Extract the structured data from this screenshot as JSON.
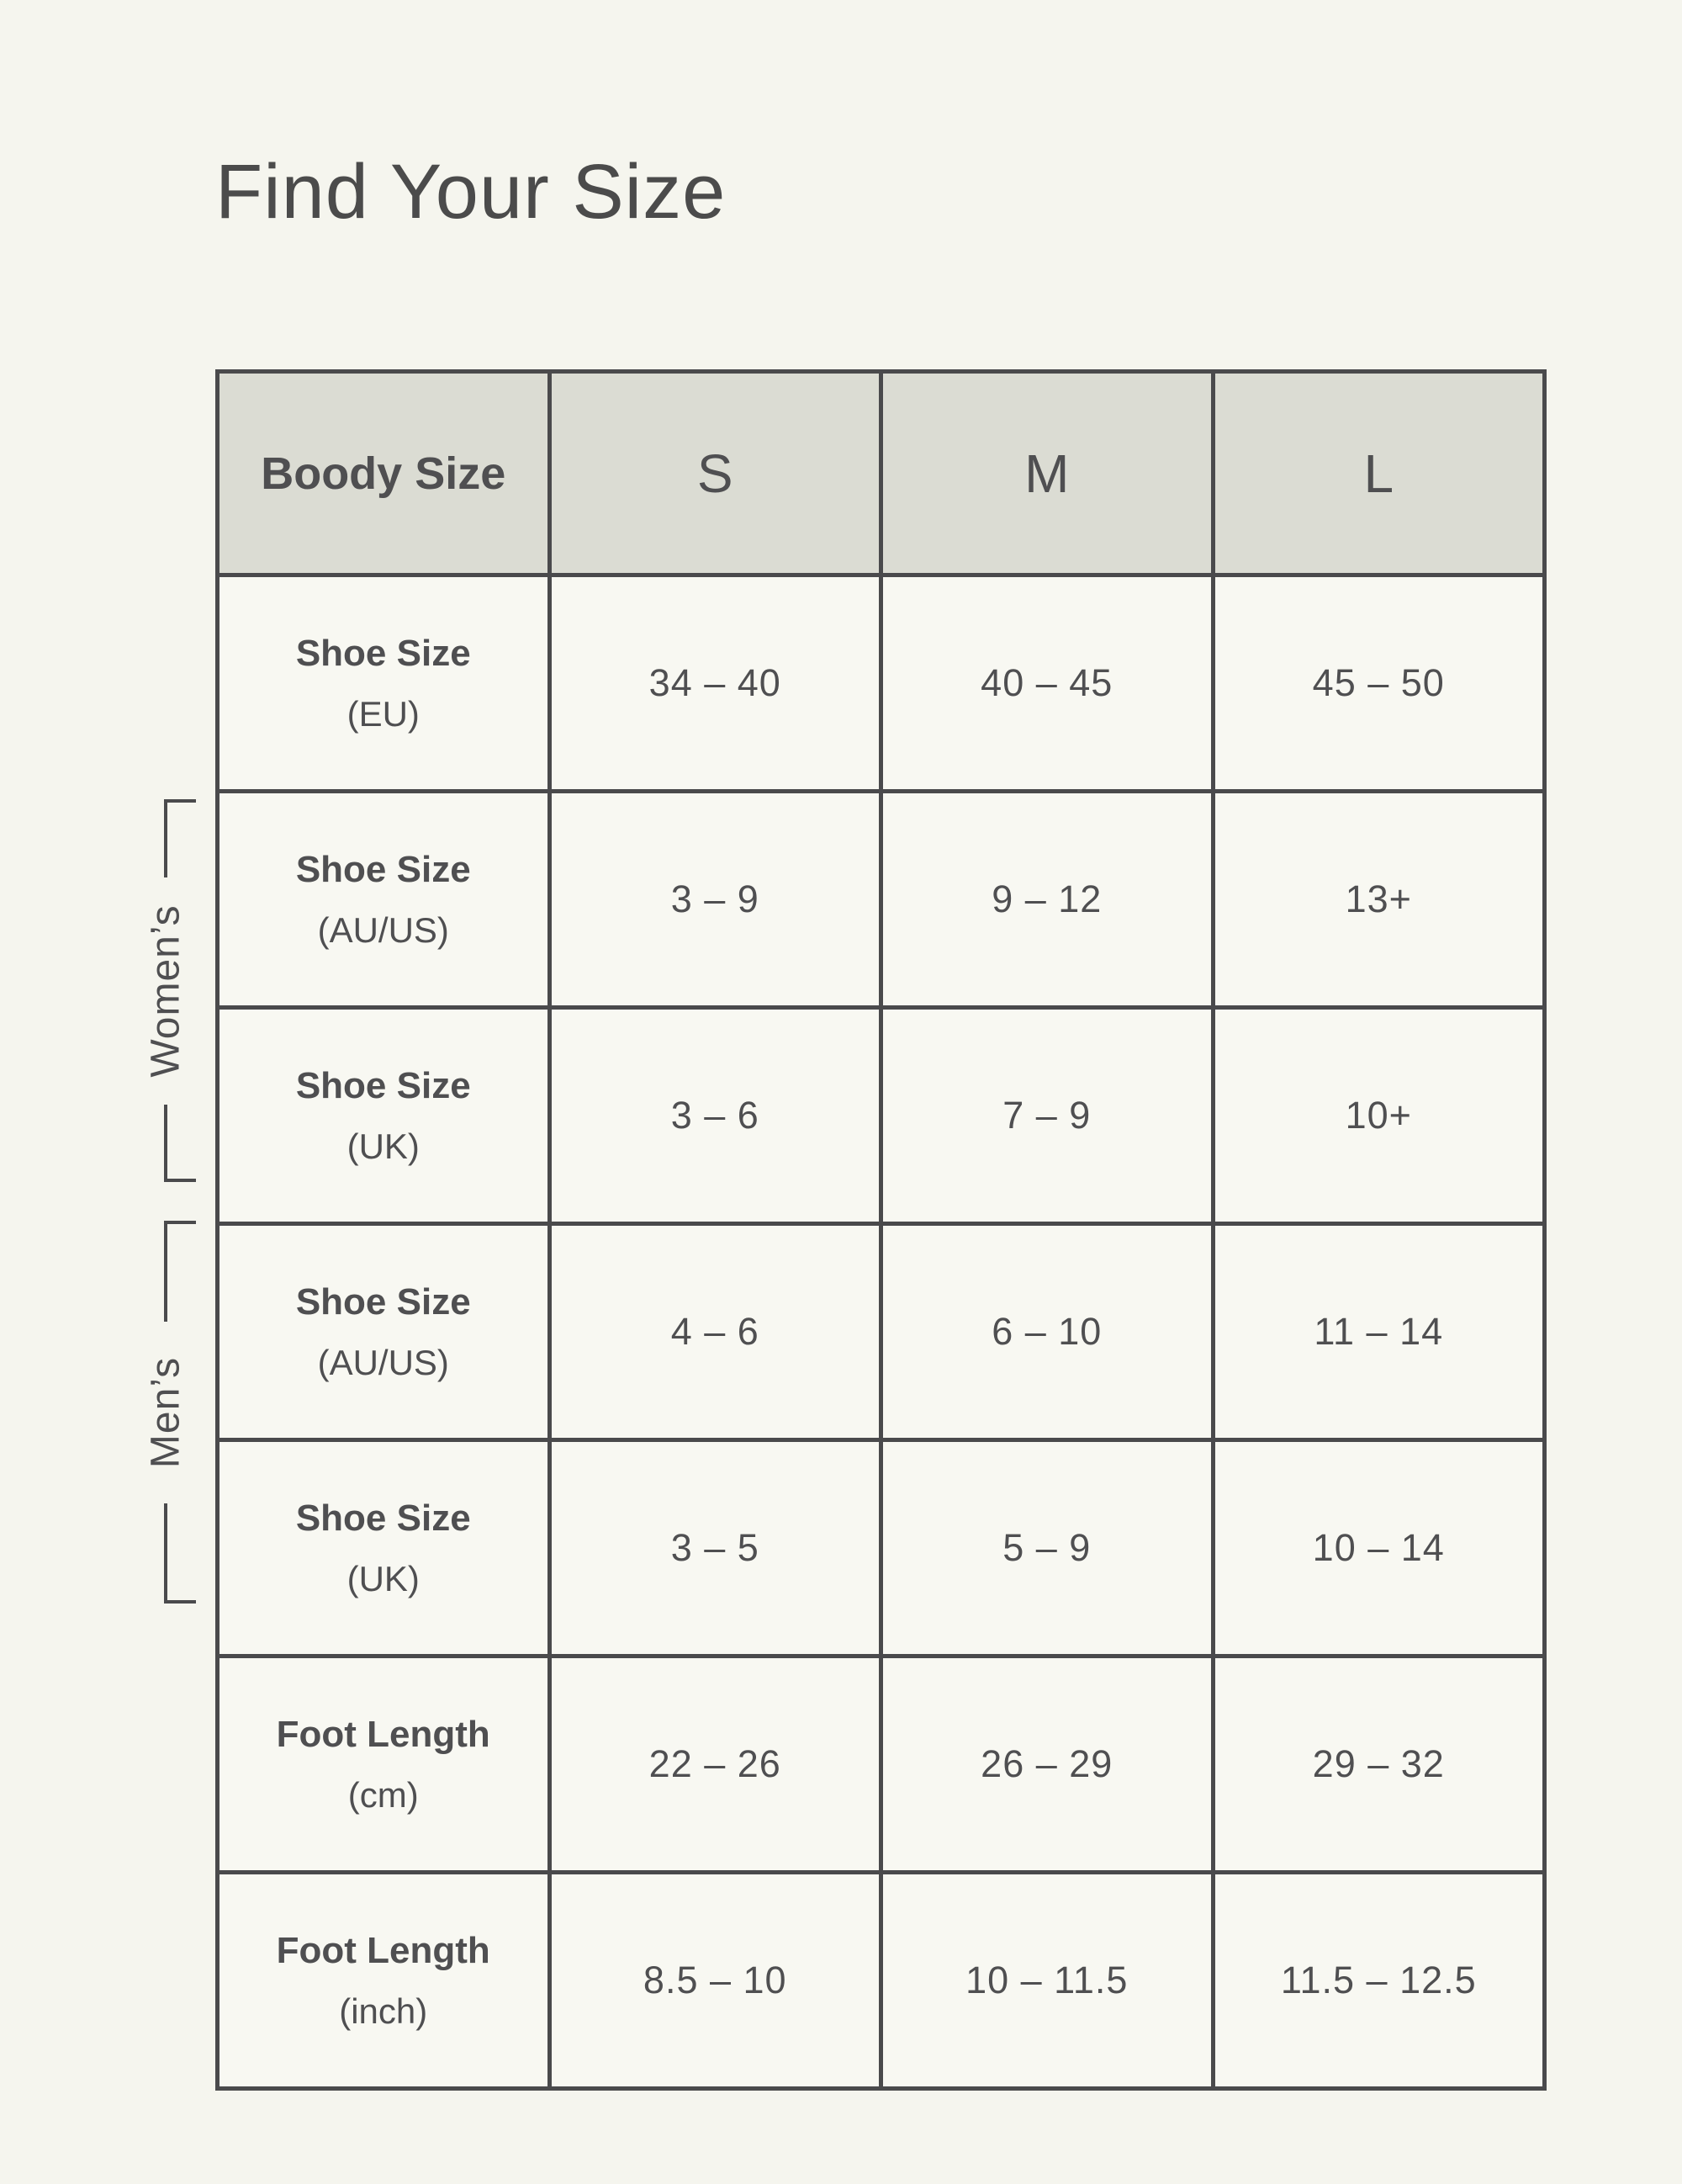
{
  "page_title": "Find Your Size",
  "colors": {
    "background": "#f5f5ee",
    "cell_background": "#f8f8f2",
    "header_background": "#dbdcd3",
    "border": "#4a4a4c",
    "text": "#4f4f51"
  },
  "groups": {
    "womens_label": "Women’s",
    "mens_label": "Men’s"
  },
  "table": {
    "corner_label": "Boody Size",
    "size_headers": [
      "S",
      "M",
      "L"
    ],
    "rows": [
      {
        "label": "Shoe Size",
        "sublabel": "(EU)",
        "values": [
          "34 – 40",
          "40 – 45",
          "45 – 50"
        ]
      },
      {
        "label": "Shoe Size",
        "sublabel": "(AU/US)",
        "values": [
          "3 – 9",
          "9 – 12",
          "13+"
        ]
      },
      {
        "label": "Shoe Size",
        "sublabel": "(UK)",
        "values": [
          "3 – 6",
          "7 – 9",
          "10+"
        ]
      },
      {
        "label": "Shoe Size",
        "sublabel": "(AU/US)",
        "values": [
          "4 – 6",
          "6 – 10",
          "11 – 14"
        ]
      },
      {
        "label": "Shoe Size",
        "sublabel": "(UK)",
        "values": [
          "3 – 5",
          "5 – 9",
          "10 – 14"
        ]
      },
      {
        "label": "Foot Length",
        "sublabel": "(cm)",
        "values": [
          "22 – 26",
          "26 – 29",
          "29 – 32"
        ]
      },
      {
        "label": "Foot Length",
        "sublabel": "(inch)",
        "values": [
          "8.5 – 10",
          "10 – 11.5",
          "11.5 – 12.5"
        ]
      }
    ]
  },
  "chart_data": {
    "type": "table",
    "title": "Find Your Size",
    "columns": [
      "Boody Size",
      "S",
      "M",
      "L"
    ],
    "rows": [
      [
        "Shoe Size (EU)",
        "34 – 40",
        "40 – 45",
        "45 – 50"
      ],
      [
        "Shoe Size (AU/US) – Women's",
        "3 – 9",
        "9 – 12",
        "13+"
      ],
      [
        "Shoe Size (UK) – Women's",
        "3 – 6",
        "7 – 9",
        "10+"
      ],
      [
        "Shoe Size (AU/US) – Men's",
        "4 – 6",
        "6 – 10",
        "11 – 14"
      ],
      [
        "Shoe Size (UK) – Men's",
        "3 – 5",
        "5 – 9",
        "10 – 14"
      ],
      [
        "Foot Length (cm)",
        "22 – 26",
        "26 – 29",
        "29 – 32"
      ],
      [
        "Foot Length (inch)",
        "8.5 – 10",
        "10 – 11.5",
        "11.5 – 12.5"
      ]
    ],
    "row_groups": [
      {
        "name": "Women's",
        "rows": [
          1,
          2
        ]
      },
      {
        "name": "Men's",
        "rows": [
          3,
          4
        ]
      }
    ],
    "layout_hints": {
      "header_row_shaded": true,
      "grid": true
    }
  }
}
